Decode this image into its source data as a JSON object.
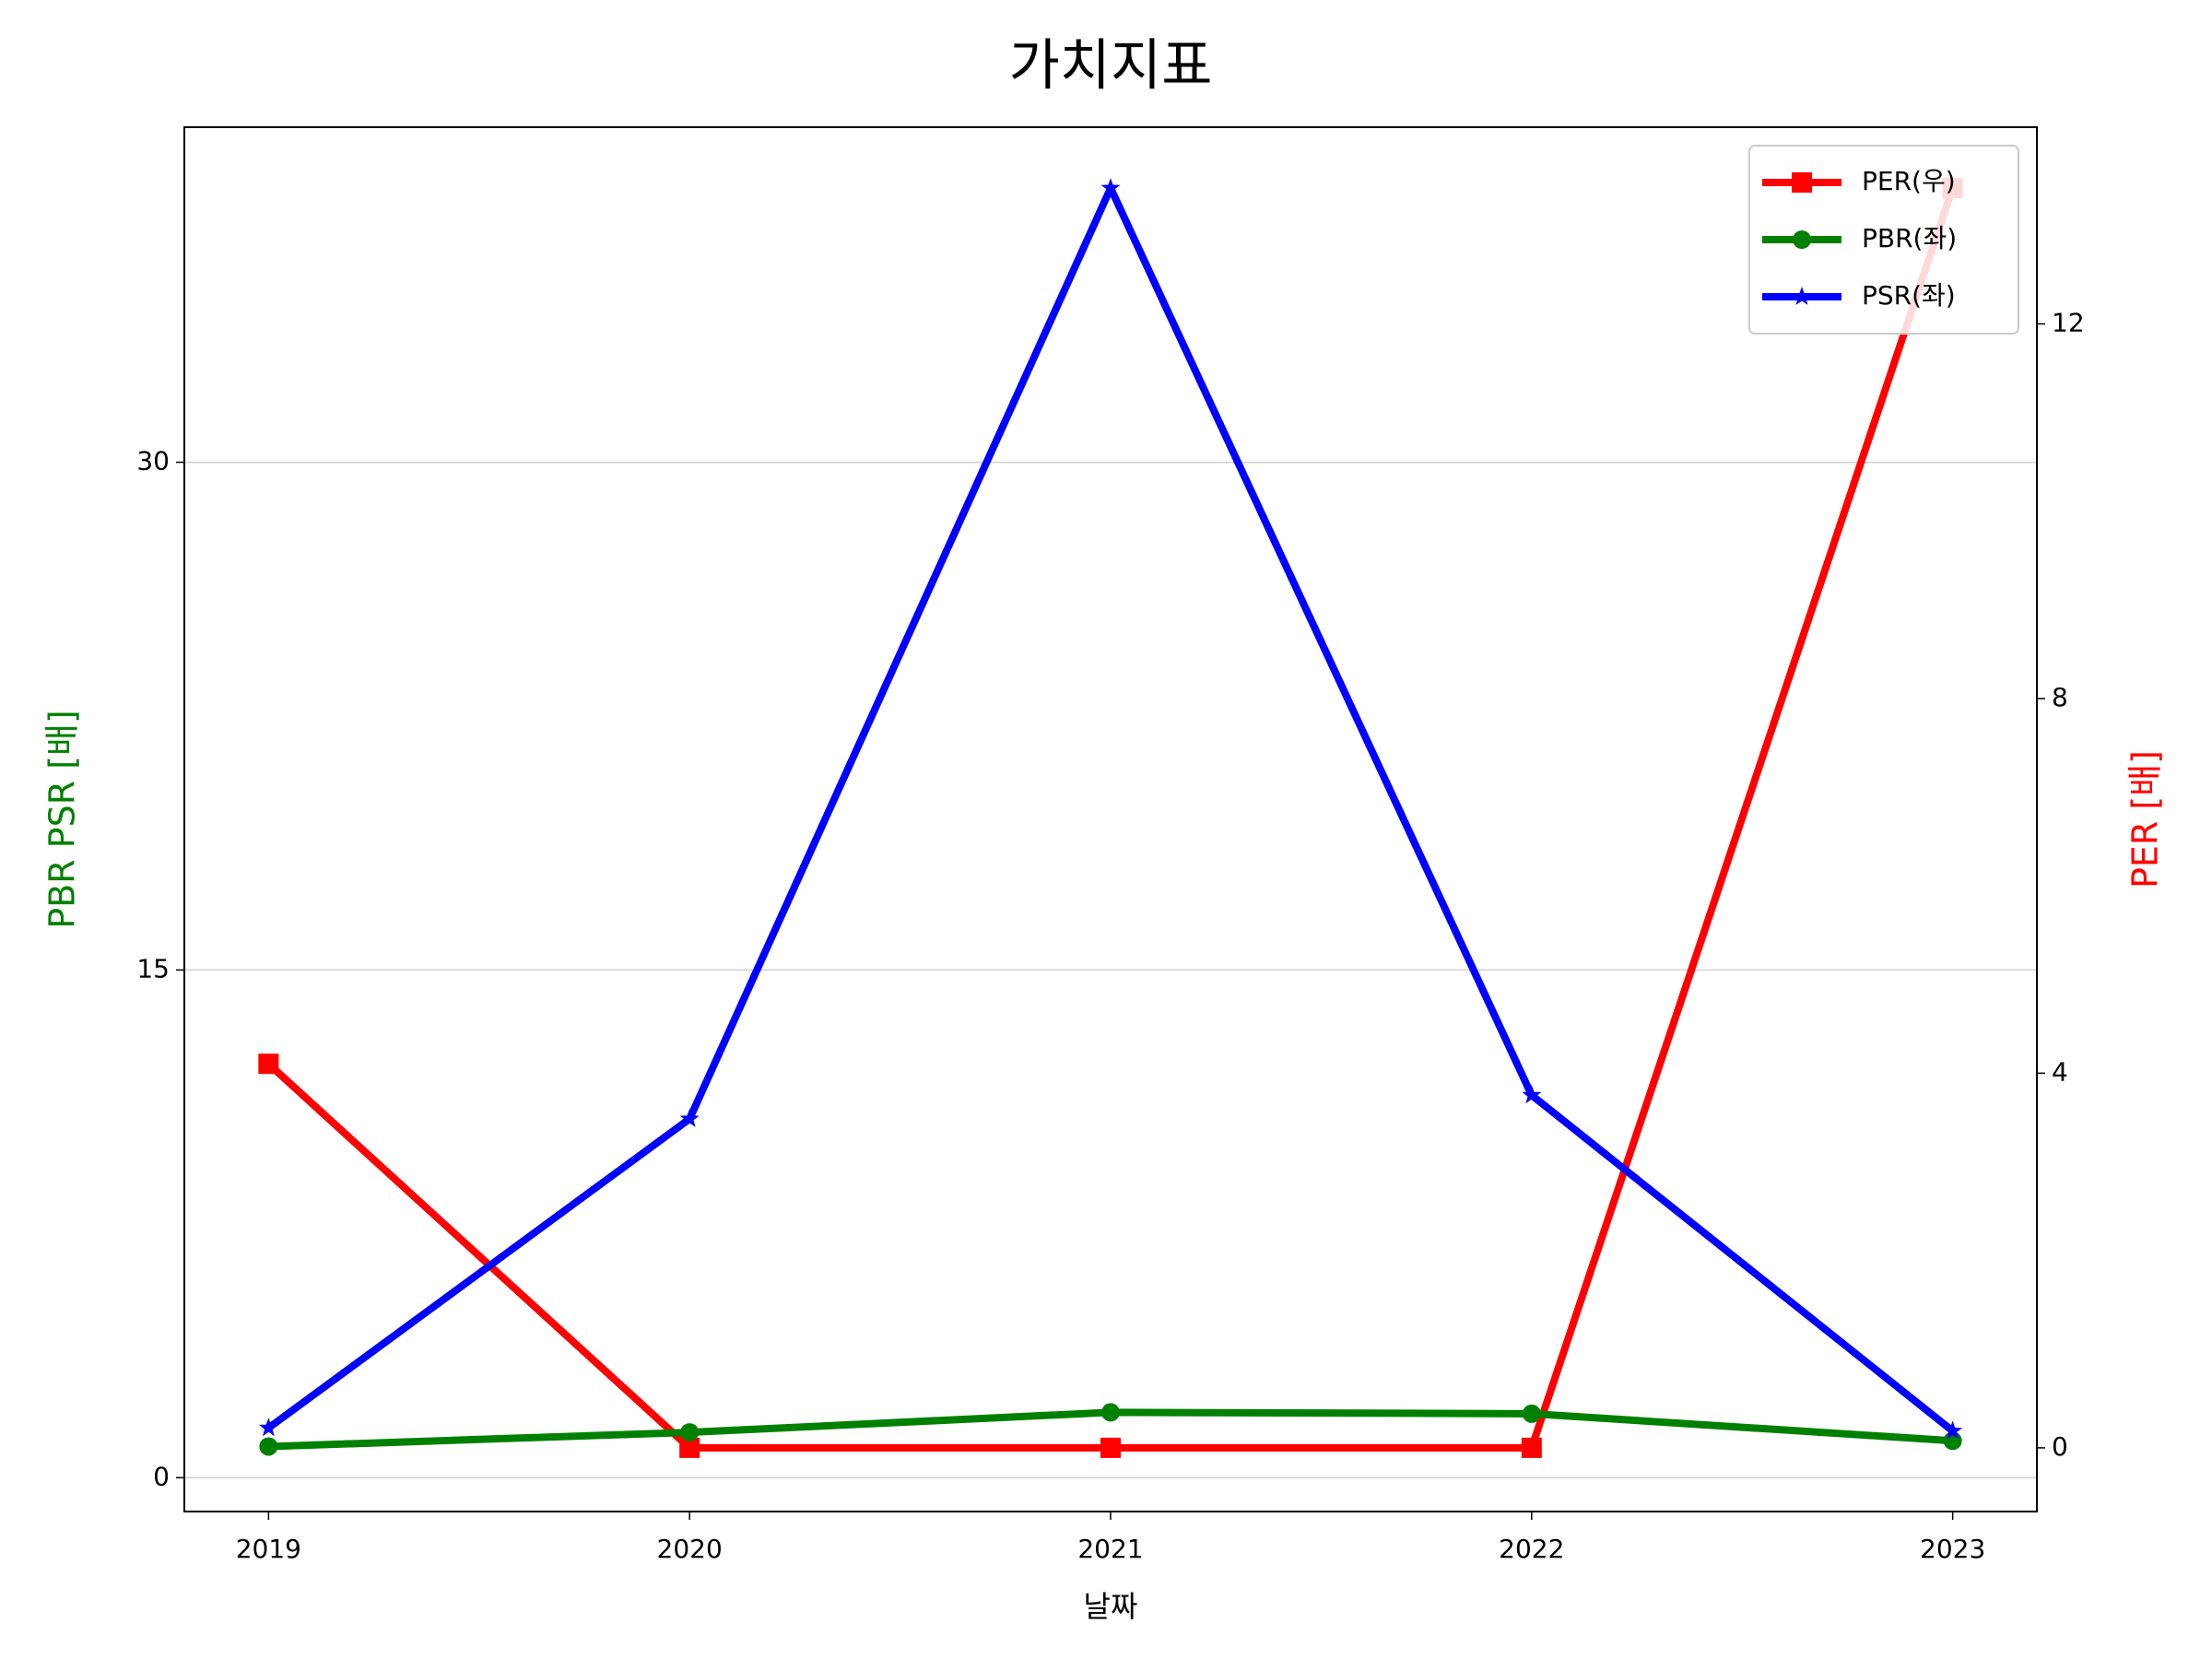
{
  "chart_data": {
    "type": "line",
    "title": "가치지표",
    "x_label": "날짜",
    "y_label": "PBR PSR [배]",
    "y2_label": "PER [배]",
    "y_label_color": "green",
    "y2_label_color": "red",
    "x": [
      2019,
      2020,
      2021,
      2022,
      2023
    ],
    "xlim": [
      2018.8,
      2023.2
    ],
    "xticks": [
      2019,
      2020,
      2021,
      2022,
      2023
    ],
    "ylim": [
      -1.0,
      39.9
    ],
    "yticks": [
      0,
      15,
      30
    ],
    "y2lim": [
      -0.68,
      14.1
    ],
    "y2ticks": [
      0,
      4,
      8,
      12
    ],
    "grid": true,
    "legend": "upper right",
    "series": [
      {
        "name": "PER(우)",
        "color": "red",
        "marker": "square",
        "axis": "y2",
        "values": [
          4.1,
          0,
          0,
          0,
          13.45
        ]
      },
      {
        "name": "PBR(좌)",
        "color": "green",
        "marker": "circle",
        "values": [
          0.92,
          1.34,
          1.93,
          1.89,
          1.09
        ]
      },
      {
        "name": "PSR(좌)",
        "color": "blue",
        "marker": "star",
        "values": [
          1.47,
          10.6,
          38.1,
          11.3,
          1.38
        ]
      }
    ]
  }
}
